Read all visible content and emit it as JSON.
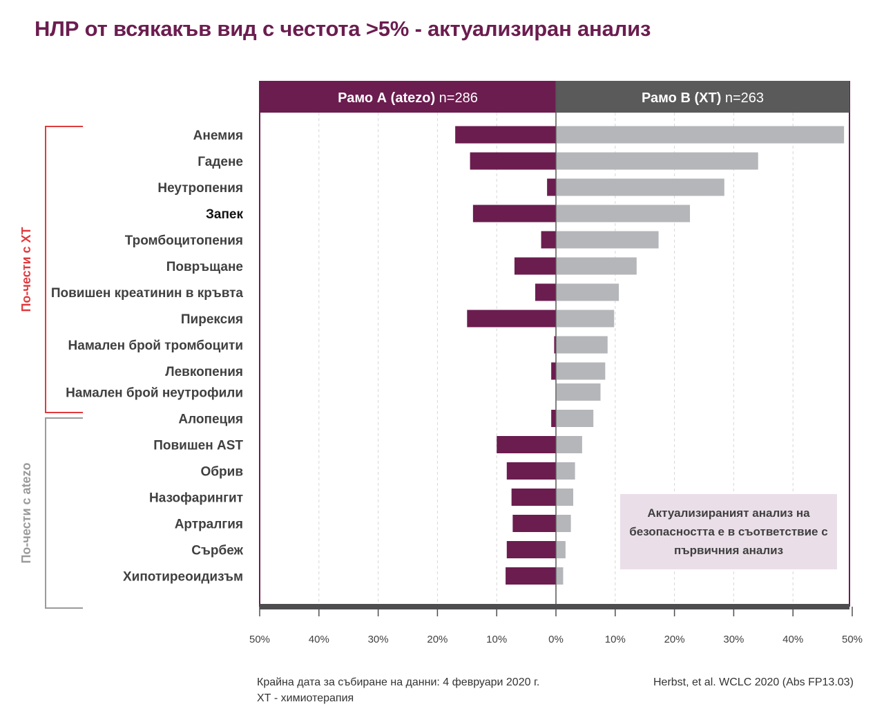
{
  "title": "НЛР от всякакъв вид с честота >5% - актуализиран анализ",
  "chart_data": {
    "type": "bar",
    "orientation": "horizontal-diverging",
    "xrange": [
      0,
      50
    ],
    "units": "%",
    "header_left": {
      "name": "Рамо А (atezo)",
      "n": "n=286",
      "color": "#6b1d4f"
    },
    "header_right": {
      "name": "Рамо B (ХТ)",
      "n": "n=263",
      "color": "#5a5a5a"
    },
    "series": [
      {
        "name": "Рамо А (atezo)",
        "side": "left",
        "color": "#6b1d4f",
        "values": [
          17,
          14.5,
          1.5,
          14,
          2.5,
          7,
          3.5,
          15,
          0.3,
          0.8,
          0,
          0.8,
          10,
          8.3,
          7.5,
          7.3,
          8.3,
          8.5
        ]
      },
      {
        "name": "Рамо B (ХТ)",
        "side": "right",
        "color": "#b5b6ba",
        "values": [
          48.5,
          34,
          28.3,
          22.5,
          17.2,
          13.5,
          10.5,
          9.7,
          8.6,
          8.2,
          7.4,
          6.2,
          4.3,
          3.1,
          2.8,
          2.4,
          1.5,
          1.1
        ]
      }
    ],
    "categories": [
      "Анемия",
      "Гадене",
      "Неутропения",
      "Запек",
      "Тромбоцитопения",
      "Повръщане",
      "Повишен креатинин в кръвта",
      "Пирексия",
      "Намален брой тромбоцити",
      "Левкопения",
      "Намален брой неутрофили",
      "Алопеция",
      "Повишен AST",
      "Обрив",
      "Назофарингит",
      "Артралгия",
      "Сърбеж",
      "Хипотиреоидизъм"
    ],
    "emphasized_category": "Запек",
    "ticks_left": [
      "50%",
      "40%",
      "30%",
      "20%",
      "10%"
    ],
    "ticks_right": [
      "0%",
      "10%",
      "20%",
      "30%",
      "40%",
      "50%"
    ],
    "groups": [
      {
        "label": "По-чести с ХТ",
        "color": "#e03a3e",
        "from_index": 0,
        "to_index": 10
      },
      {
        "label": "По-чести с  atezo",
        "color": "#9a9a9a",
        "from_index": 11,
        "to_index": 17
      }
    ],
    "annotation": "Актуализираният анализ на безопасността е в съответствие с първичния анализ"
  },
  "footer": {
    "line1": "Крайна дата за събиране на данни: 4 февруари 2020 г.",
    "line2": "ХТ - химиотерапия",
    "citation": "Herbst, et al. WCLC 2020 (Abs FP13.03)"
  }
}
